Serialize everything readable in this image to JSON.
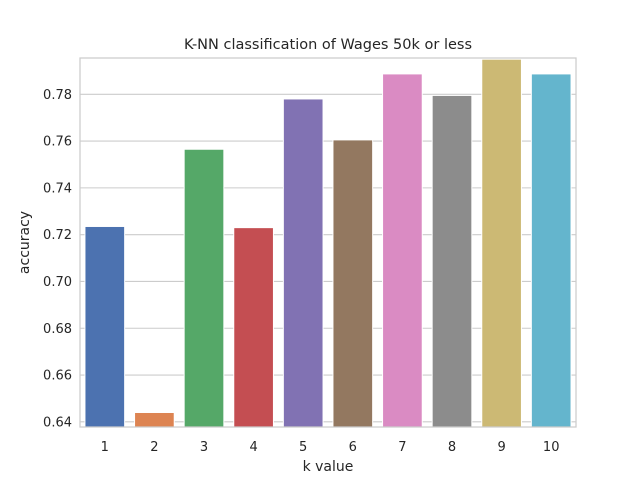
{
  "chart_data": {
    "type": "bar",
    "title": "K-NN classification of Wages 50k or less",
    "xlabel": "k value",
    "ylabel": "accuracy",
    "categories": [
      "1",
      "2",
      "3",
      "4",
      "5",
      "6",
      "7",
      "8",
      "9",
      "10"
    ],
    "values": [
      0.7235,
      0.644,
      0.7565,
      0.723,
      0.778,
      0.7605,
      0.7887,
      0.7795,
      0.795,
      0.7887
    ],
    "colors": [
      "#4c72b0",
      "#dd8452",
      "#55a868",
      "#c44e52",
      "#8172b3",
      "#937860",
      "#da8bc3",
      "#8c8c8c",
      "#ccb974",
      "#64b5cd"
    ],
    "ylim": [
      0.6378,
      0.7955
    ],
    "yticks": [
      0.64,
      0.66,
      0.68,
      0.7,
      0.72,
      0.74,
      0.76,
      0.78
    ],
    "ytick_labels": [
      "0.64",
      "0.66",
      "0.68",
      "0.70",
      "0.72",
      "0.74",
      "0.76",
      "0.78"
    ],
    "grid": "horizontal",
    "legend": "none"
  }
}
